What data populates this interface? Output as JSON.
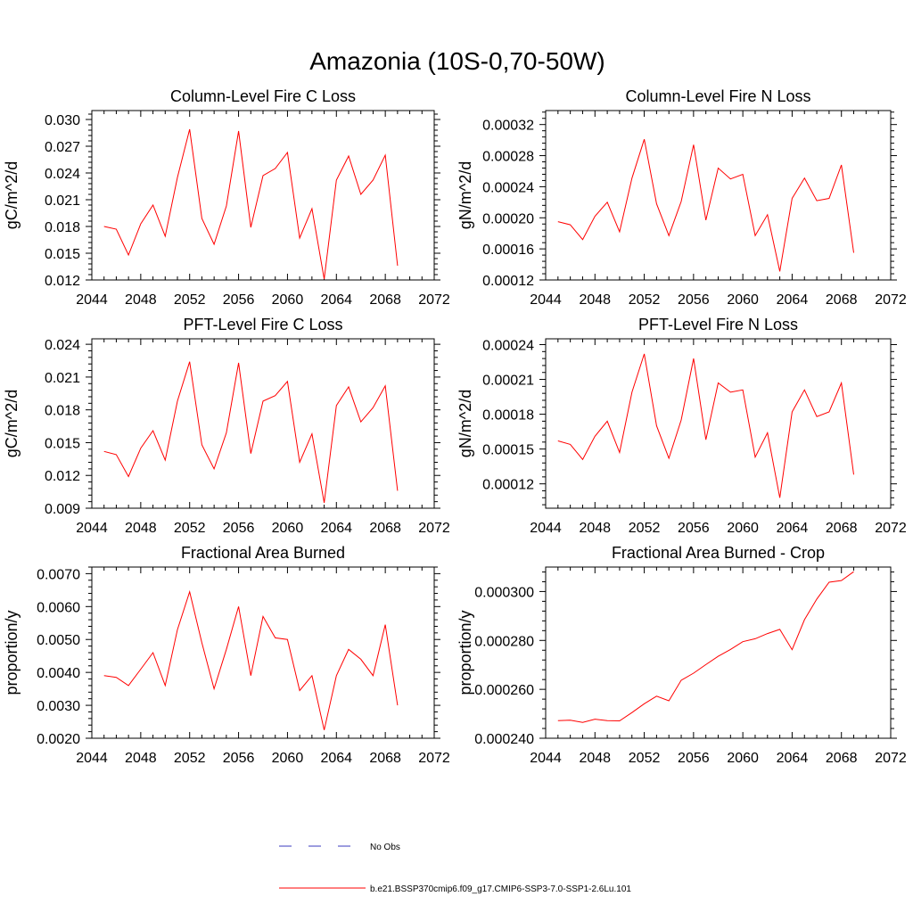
{
  "figure": {
    "title": "Amazonia (10S-0,70-50W)"
  },
  "legend": {
    "entries": [
      {
        "label": "No Obs",
        "color": "#3b3bbf",
        "style": "dashed"
      },
      {
        "label": "b.e21.BSSP370cmip6.f09_g17.CMIP6-SSP3-7.0-SSP1-2.6Lu.101",
        "color": "#ff0000",
        "style": "solid"
      }
    ]
  },
  "chart_data": [
    {
      "type": "line",
      "title": "Column-Level Fire C Loss",
      "ylabel": "gC/m^2/d",
      "xlabel": "",
      "xlim": [
        2044,
        2072
      ],
      "ylim": [
        0.012,
        0.031
      ],
      "xticks": [
        "2044",
        "2048",
        "2052",
        "2056",
        "2060",
        "2064",
        "2068",
        "2072"
      ],
      "yticks": [
        0.012,
        0.015,
        0.018,
        0.021,
        0.024,
        0.027,
        0.03
      ],
      "ytick_labels": [
        "0.012",
        "0.015",
        "0.018",
        "0.021",
        "0.024",
        "0.027",
        "0.030"
      ],
      "x": [
        2045,
        2046,
        2047,
        2048,
        2049,
        2050,
        2051,
        2052,
        2053,
        2054,
        2055,
        2056,
        2057,
        2058,
        2059,
        2060,
        2061,
        2062,
        2063,
        2064,
        2065,
        2066,
        2067,
        2068,
        2069
      ],
      "series": [
        {
          "color": "#ff0000",
          "values": [
            0.018,
            0.0177,
            0.0148,
            0.0183,
            0.0204,
            0.0169,
            0.0235,
            0.0289,
            0.0189,
            0.016,
            0.0203,
            0.0287,
            0.0179,
            0.0237,
            0.0245,
            0.0263,
            0.0167,
            0.02,
            0.0121,
            0.0232,
            0.0259,
            0.0216,
            0.0232,
            0.026,
            0.0136
          ]
        }
      ]
    },
    {
      "type": "line",
      "title": "Column-Level Fire N Loss",
      "ylabel": "gN/m^2/d",
      "xlabel": "",
      "xlim": [
        2044,
        2072
      ],
      "ylim": [
        0.00012,
        0.000338
      ],
      "xticks": [
        "2044",
        "2048",
        "2052",
        "2056",
        "2060",
        "2064",
        "2068",
        "2072"
      ],
      "yticks": [
        0.00012,
        0.00016,
        0.0002,
        0.00024,
        0.00028,
        0.00032
      ],
      "ytick_labels": [
        "0.00012",
        "0.00016",
        "0.00020",
        "0.00024",
        "0.00028",
        "0.00032"
      ],
      "x": [
        2045,
        2046,
        2047,
        2048,
        2049,
        2050,
        2051,
        2052,
        2053,
        2054,
        2055,
        2056,
        2057,
        2058,
        2059,
        2060,
        2061,
        2062,
        2063,
        2064,
        2065,
        2066,
        2067,
        2068,
        2069
      ],
      "series": [
        {
          "color": "#ff0000",
          "values": [
            0.000195,
            0.000191,
            0.000172,
            0.000202,
            0.00022,
            0.000182,
            0.000251,
            0.000301,
            0.000218,
            0.000177,
            0.000221,
            0.000294,
            0.000197,
            0.000264,
            0.00025,
            0.000256,
            0.000177,
            0.000204,
            0.000131,
            0.000225,
            0.000251,
            0.000222,
            0.000225,
            0.000268,
            0.000155
          ]
        }
      ]
    },
    {
      "type": "line",
      "title": "PFT-Level Fire C Loss",
      "ylabel": "gC/m^2/d",
      "xlabel": "",
      "xlim": [
        2044,
        2072
      ],
      "ylim": [
        0.009,
        0.0245
      ],
      "xticks": [
        "2044",
        "2048",
        "2052",
        "2056",
        "2060",
        "2064",
        "2068",
        "2072"
      ],
      "yticks": [
        0.009,
        0.012,
        0.015,
        0.018,
        0.021,
        0.024
      ],
      "ytick_labels": [
        "0.009",
        "0.012",
        "0.015",
        "0.018",
        "0.021",
        "0.024"
      ],
      "x": [
        2045,
        2046,
        2047,
        2048,
        2049,
        2050,
        2051,
        2052,
        2053,
        2054,
        2055,
        2056,
        2057,
        2058,
        2059,
        2060,
        2061,
        2062,
        2063,
        2064,
        2065,
        2066,
        2067,
        2068,
        2069
      ],
      "series": [
        {
          "color": "#ff0000",
          "values": [
            0.0142,
            0.0139,
            0.0119,
            0.0145,
            0.0161,
            0.0134,
            0.0188,
            0.0224,
            0.0148,
            0.0126,
            0.0159,
            0.0223,
            0.014,
            0.0188,
            0.0193,
            0.0206,
            0.0132,
            0.0158,
            0.0095,
            0.0184,
            0.0201,
            0.0169,
            0.0182,
            0.0202,
            0.0106
          ]
        }
      ]
    },
    {
      "type": "line",
      "title": "PFT-Level Fire N Loss",
      "ylabel": "gN/m^2/d",
      "xlabel": "",
      "xlim": [
        2044,
        2072
      ],
      "ylim": [
        9.9e-05,
        0.000245
      ],
      "xticks": [
        "2044",
        "2048",
        "2052",
        "2056",
        "2060",
        "2064",
        "2068",
        "2072"
      ],
      "yticks": [
        0.00012,
        0.00015,
        0.00018,
        0.00021,
        0.00024
      ],
      "ytick_labels": [
        "0.00012",
        "0.00015",
        "0.00018",
        "0.00021",
        "0.00024"
      ],
      "x": [
        2045,
        2046,
        2047,
        2048,
        2049,
        2050,
        2051,
        2052,
        2053,
        2054,
        2055,
        2056,
        2057,
        2058,
        2059,
        2060,
        2061,
        2062,
        2063,
        2064,
        2065,
        2066,
        2067,
        2068,
        2069
      ],
      "series": [
        {
          "color": "#ff0000",
          "values": [
            0.000157,
            0.000154,
            0.000141,
            0.000161,
            0.000174,
            0.000147,
            0.000199,
            0.000232,
            0.00017,
            0.000142,
            0.000175,
            0.000228,
            0.000158,
            0.000207,
            0.000199,
            0.000201,
            0.000143,
            0.000164,
            0.000108,
            0.000182,
            0.000201,
            0.000178,
            0.000182,
            0.000207,
            0.000128
          ]
        }
      ]
    },
    {
      "type": "line",
      "title": "Fractional Area Burned",
      "ylabel": "proportion/y",
      "xlabel": "",
      "xlim": [
        2044,
        2072
      ],
      "ylim": [
        0.002,
        0.0072
      ],
      "xticks": [
        "2044",
        "2048",
        "2052",
        "2056",
        "2060",
        "2064",
        "2068",
        "2072"
      ],
      "yticks": [
        0.002,
        0.003,
        0.004,
        0.005,
        0.006,
        0.007
      ],
      "ytick_labels": [
        "0.0020",
        "0.0030",
        "0.0040",
        "0.0050",
        "0.0060",
        "0.0070"
      ],
      "x": [
        2045,
        2046,
        2047,
        2048,
        2049,
        2050,
        2051,
        2052,
        2053,
        2054,
        2055,
        2056,
        2057,
        2058,
        2059,
        2060,
        2061,
        2062,
        2063,
        2064,
        2065,
        2066,
        2067,
        2068,
        2069
      ],
      "series": [
        {
          "color": "#ff0000",
          "values": [
            0.0039,
            0.00385,
            0.0036,
            0.0041,
            0.0046,
            0.0036,
            0.0053,
            0.00645,
            0.0049,
            0.0035,
            0.0047,
            0.006,
            0.0039,
            0.0057,
            0.00505,
            0.005,
            0.00345,
            0.0039,
            0.00225,
            0.0039,
            0.0047,
            0.0044,
            0.0039,
            0.00545,
            0.003
          ]
        }
      ]
    },
    {
      "type": "line",
      "title": "Fractional Area Burned - Crop",
      "ylabel": "proportion/y",
      "xlabel": "",
      "xlim": [
        2044,
        2072
      ],
      "ylim": [
        0.00024,
        0.00031
      ],
      "xticks": [
        "2044",
        "2048",
        "2052",
        "2056",
        "2060",
        "2064",
        "2068",
        "2072"
      ],
      "yticks": [
        0.00024,
        0.00026,
        0.00028,
        0.0003
      ],
      "ytick_labels": [
        "0.000240",
        "0.000260",
        "0.000280",
        "0.000300"
      ],
      "x": [
        2045,
        2046,
        2047,
        2048,
        2049,
        2050,
        2051,
        2052,
        2053,
        2054,
        2055,
        2056,
        2057,
        2058,
        2059,
        2060,
        2061,
        2062,
        2063,
        2064,
        2065,
        2066,
        2067,
        2068,
        2069
      ],
      "series": [
        {
          "color": "#ff0000",
          "values": [
            0.0002472,
            0.0002474,
            0.0002465,
            0.0002478,
            0.0002472,
            0.0002471,
            0.0002505,
            0.0002541,
            0.0002572,
            0.0002553,
            0.0002637,
            0.0002666,
            0.0002701,
            0.0002735,
            0.0002763,
            0.0002795,
            0.0002807,
            0.0002828,
            0.0002845,
            0.0002762,
            0.0002885,
            0.0002969,
            0.0003038,
            0.0003045,
            0.0003081
          ]
        }
      ]
    }
  ]
}
